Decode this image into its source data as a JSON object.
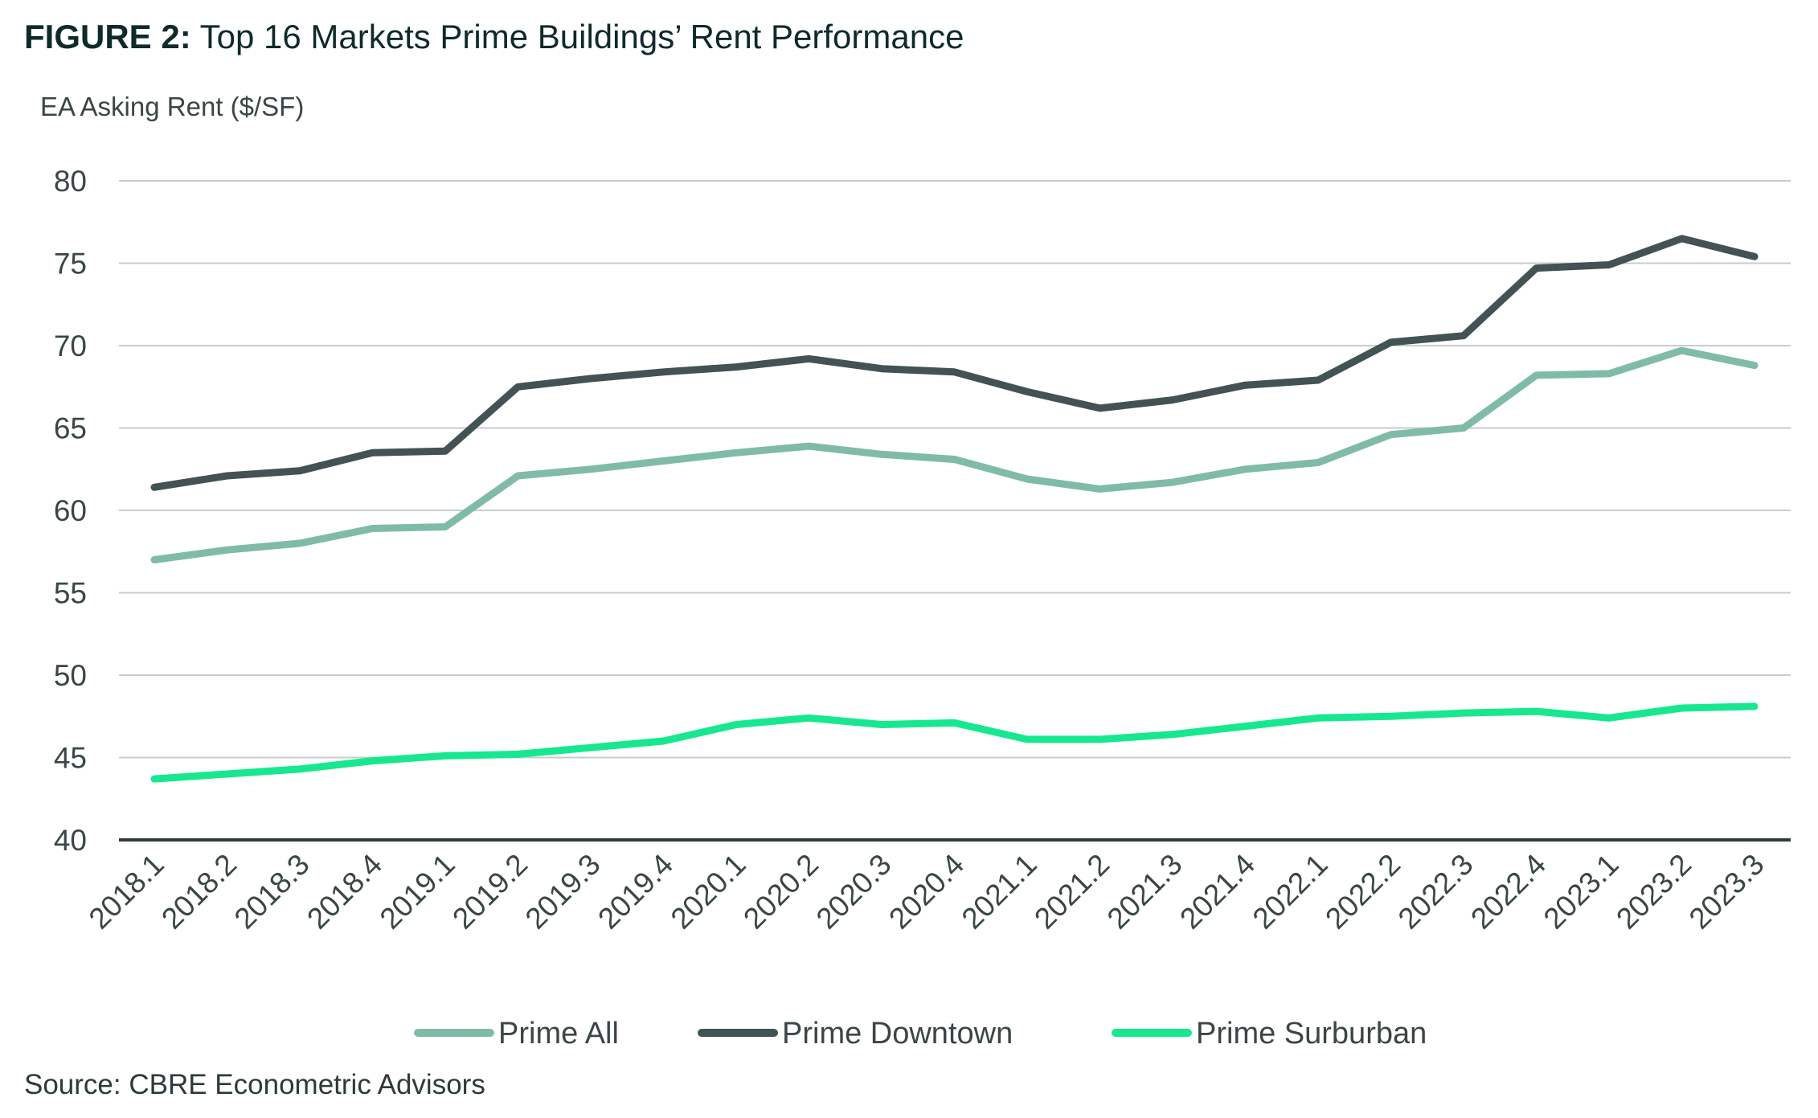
{
  "figure": {
    "label": "FIGURE 2:",
    "title": "Top 16 Markets Prime Buildings’ Rent Performance",
    "source": "Source: CBRE Econometric Advisors"
  },
  "chart_data": {
    "type": "line",
    "title": "FIGURE 2: Top 16 Markets Prime Buildings’ Rent Performance",
    "ylabel": "EA Asking Rent ($/SF)",
    "xlabel": "",
    "ylim": [
      40,
      80
    ],
    "yticks": [
      40,
      45,
      50,
      55,
      60,
      65,
      70,
      75,
      80
    ],
    "grid": true,
    "legend_position": "bottom",
    "categories": [
      "2018.1",
      "2018.2",
      "2018.3",
      "2018.4",
      "2019.1",
      "2019.2",
      "2019.3",
      "2019.4",
      "2020.1",
      "2020.2",
      "2020.3",
      "2020.4",
      "2021.1",
      "2021.2",
      "2021.3",
      "2021.4",
      "2022.1",
      "2022.2",
      "2022.3",
      "2022.4",
      "2023.1",
      "2023.2",
      "2023.3"
    ],
    "series": [
      {
        "name": "Prime All",
        "color": "#80bbaa",
        "values": [
          57.0,
          57.6,
          58.0,
          58.9,
          59.0,
          62.1,
          62.5,
          63.0,
          63.5,
          63.9,
          63.4,
          63.1,
          61.9,
          61.3,
          61.7,
          62.5,
          62.9,
          64.6,
          65.0,
          68.2,
          68.3,
          69.7,
          68.8
        ]
      },
      {
        "name": "Prime Downtown",
        "color": "#435254",
        "values": [
          61.4,
          62.1,
          62.4,
          63.5,
          63.6,
          67.5,
          68.0,
          68.4,
          68.7,
          69.2,
          68.6,
          68.4,
          67.2,
          66.2,
          66.7,
          67.6,
          67.9,
          70.2,
          70.6,
          74.7,
          74.9,
          76.5,
          75.4
        ]
      },
      {
        "name": "Prime Surburban",
        "color": "#17e88f",
        "values": [
          43.7,
          44.0,
          44.3,
          44.8,
          45.1,
          45.2,
          45.6,
          46.0,
          47.0,
          47.4,
          47.0,
          47.1,
          46.1,
          46.1,
          46.4,
          46.9,
          47.4,
          47.5,
          47.7,
          47.8,
          47.4,
          48.0,
          48.1
        ]
      }
    ]
  }
}
